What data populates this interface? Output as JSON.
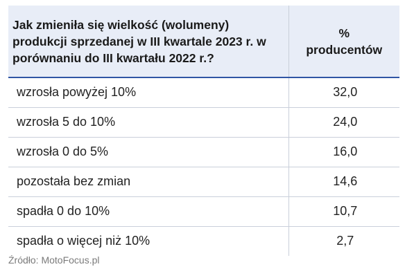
{
  "header": {
    "question": "Jak zmieniła się wielkość (wolumeny) produkcji sprzedanej w III kwartale 2023 r. w porównaniu do III kwartału 2022 r.?",
    "percent_symbol": "%",
    "percent_label": "producentów"
  },
  "rows": [
    {
      "label": "wzrosła powyżej 10%",
      "value": "32,0"
    },
    {
      "label": "wzrosła 5 do 10%",
      "value": "24,0"
    },
    {
      "label": "wzrosła 0 do 5%",
      "value": "16,0"
    },
    {
      "label": "pozostała bez zmian",
      "value": "14,6"
    },
    {
      "label": "spadła 0 do 10%",
      "value": "10,7"
    },
    {
      "label": "spadła o więcej niż 10%",
      "value": "2,7"
    }
  ],
  "source": "Źródło: MotoFocus.pl",
  "colors": {
    "header_background": "#e8edf7",
    "header_rule": "#2f55a4",
    "row_rule": "#c9cfda",
    "source_text": "#7a7a7a"
  }
}
